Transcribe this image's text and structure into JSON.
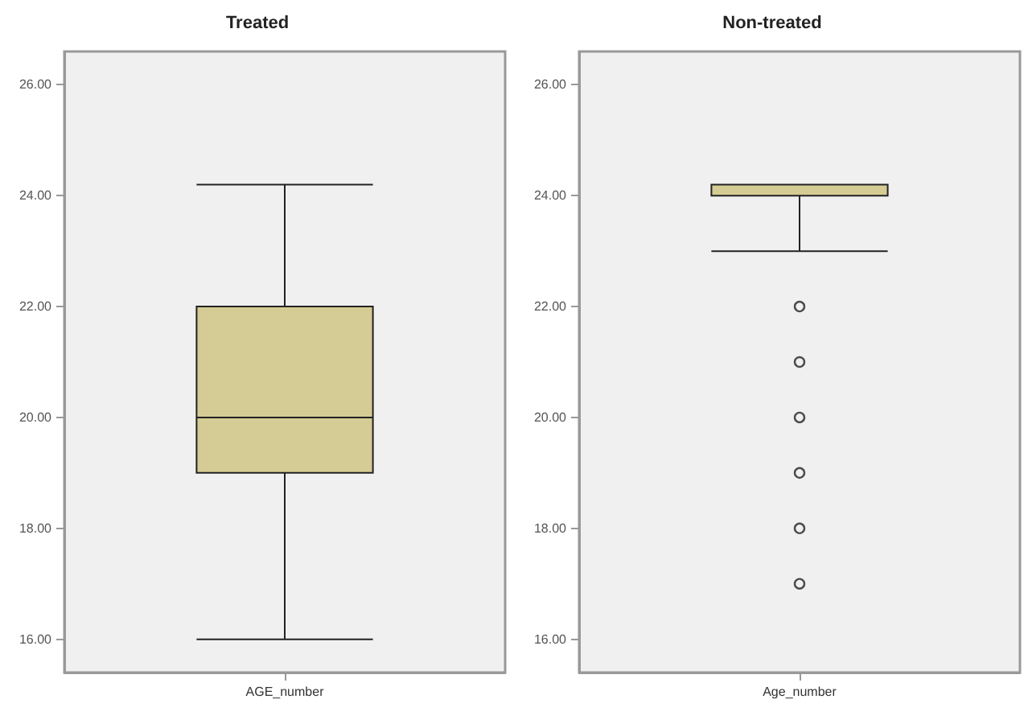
{
  "chart_data": [
    {
      "type": "box",
      "title": "Treated",
      "categories": [
        "AGE_number"
      ],
      "series": [
        {
          "color": "#d4cc94",
          "boxes": [
            {
              "low": 16,
              "q1": 19,
              "median": 20,
              "q3": 22,
              "high": 24.2
            }
          ]
        }
      ],
      "ylim": [
        15.4,
        26.6
      ],
      "yticks": [
        {
          "value": 16,
          "label": "16.00"
        },
        {
          "value": 18,
          "label": "18.00"
        },
        {
          "value": 20,
          "label": "20.00"
        },
        {
          "value": 22,
          "label": "22.00"
        },
        {
          "value": 24,
          "label": "24.00"
        },
        {
          "value": 26,
          "label": "26.00"
        }
      ]
    },
    {
      "type": "box",
      "title": "Non-treated",
      "categories": [
        "Age_number"
      ],
      "series": [
        {
          "color": "#d4cc94",
          "boxes": [
            {
              "low": 23,
              "q1": 24,
              "median": 24.2,
              "q3": 24.2,
              "high": 24.2,
              "outliers": [
                22,
                21,
                20,
                19,
                18,
                17
              ]
            }
          ]
        }
      ],
      "ylim": [
        15.4,
        26.6
      ],
      "yticks": [
        {
          "value": 16,
          "label": "16.00"
        },
        {
          "value": 18,
          "label": "18.00"
        },
        {
          "value": 20,
          "label": "20.00"
        },
        {
          "value": 22,
          "label": "22.00"
        },
        {
          "value": 24,
          "label": "24.00"
        },
        {
          "value": 26,
          "label": "26.00"
        }
      ]
    }
  ]
}
